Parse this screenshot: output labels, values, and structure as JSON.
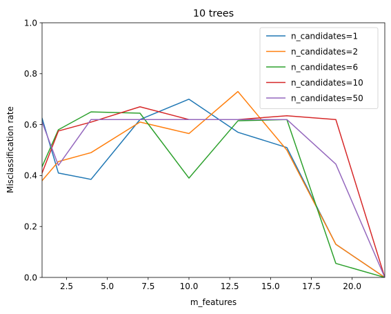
{
  "chart_data": {
    "type": "line",
    "title": "10 trees",
    "xlabel": "m_features",
    "ylabel": "Misclassification rate",
    "xlim": [
      1,
      22
    ],
    "ylim": [
      0.0,
      1.0
    ],
    "xticks": [
      2.5,
      5.0,
      7.5,
      10.0,
      12.5,
      15.0,
      17.5,
      20.0
    ],
    "xtick_labels": [
      "2.5",
      "5.0",
      "7.5",
      "10.0",
      "12.5",
      "15.0",
      "17.5",
      "20.0"
    ],
    "yticks": [
      0.0,
      0.2,
      0.4,
      0.6,
      0.8,
      1.0
    ],
    "ytick_labels": [
      "0.0",
      "0.2",
      "0.4",
      "0.6",
      "0.8",
      "1.0"
    ],
    "grid": false,
    "legend_position": "top-right",
    "x": [
      1,
      2,
      4,
      7,
      10,
      13,
      16,
      19,
      22
    ],
    "series": [
      {
        "name": "n_candidates=1",
        "color": "#1f77b4",
        "values": [
          0.625,
          0.41,
          0.385,
          0.62,
          0.7,
          0.57,
          0.51,
          0.13,
          0.0
        ]
      },
      {
        "name": "n_candidates=2",
        "color": "#ff7f0e",
        "values": [
          0.38,
          0.455,
          0.49,
          0.61,
          0.565,
          0.73,
          0.5,
          0.13,
          0.0
        ]
      },
      {
        "name": "n_candidates=6",
        "color": "#2ca02c",
        "values": [
          0.435,
          0.58,
          0.65,
          0.645,
          0.39,
          0.615,
          0.62,
          0.055,
          0.0
        ]
      },
      {
        "name": "n_candidates=10",
        "color": "#d62728",
        "values": [
          0.41,
          0.575,
          0.61,
          0.67,
          0.62,
          0.62,
          0.635,
          0.62,
          0.0
        ]
      },
      {
        "name": "n_candidates=50",
        "color": "#9467bd",
        "values": [
          0.61,
          0.44,
          0.62,
          0.62,
          0.62,
          0.62,
          0.62,
          0.445,
          0.0
        ]
      }
    ]
  }
}
